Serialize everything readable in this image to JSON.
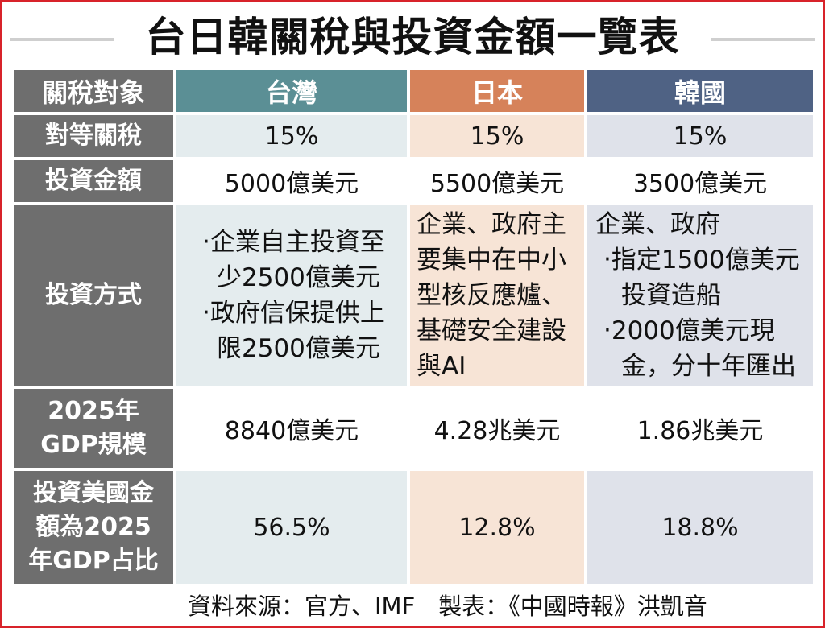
{
  "title": "台日韓關稅與投資金額一覽表",
  "header": {
    "corner": "關稅對象",
    "taiwan": "台灣",
    "japan": "日本",
    "korea": "韓國"
  },
  "rows": {
    "tariff": {
      "label": "對等關稅",
      "taiwan": "15%",
      "japan": "15%",
      "korea": "15%"
    },
    "investment": {
      "label": "投資金額",
      "taiwan": "5000億美元",
      "japan": "5500億美元",
      "korea": "3500億美元"
    },
    "method": {
      "label": "投資方式",
      "taiwan": [
        "‧企業自主投資至少2500億美元",
        "‧政府信保提供上限2500億美元"
      ],
      "japan": "企業、政府主要集中在中小型核反應爐、基礎安全建設與AI",
      "korea": {
        "intro": "企業、政府",
        "bullets": [
          "‧指定1500億美元投資造船",
          "‧2000億美元現金，分十年匯出"
        ]
      }
    },
    "gdp": {
      "label": "2025年GDP規模",
      "taiwan": "8840億美元",
      "japan": "4.28兆美元",
      "korea": "1.86兆美元"
    },
    "ratio": {
      "label": "投資美國金額為2025年GDP占比",
      "taiwan": "56.5%",
      "japan": "12.8%",
      "korea": "18.8%"
    }
  },
  "source": "資料來源：官方、IMF　製表：《中國時報》洪凱音",
  "colors": {
    "border": "#d8232a",
    "rowhead": "#6e6e6e",
    "taiwan_header": "#5b8f95",
    "japan_header": "#d6825a",
    "korea_header": "#4f6284"
  }
}
